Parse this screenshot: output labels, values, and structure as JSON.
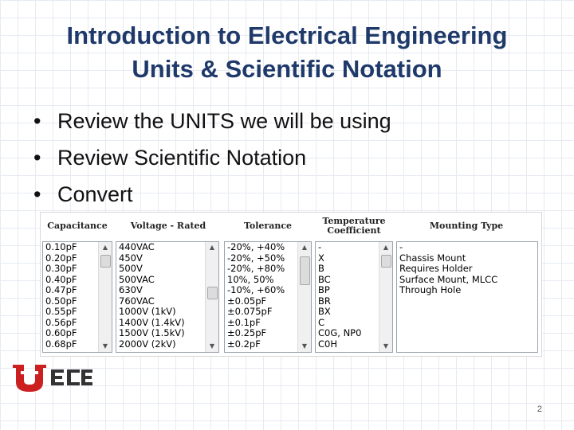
{
  "slide": {
    "title_line1": "Introduction to Electrical Engineering",
    "title_line2": "Units & Scientific Notation",
    "bullets": [
      "Review the UNITS we will be using",
      "Review Scientific Notation",
      "Convert"
    ],
    "page_number": "2"
  },
  "filters": {
    "capacitance": {
      "header": "Capacitance",
      "items": [
        "0.10pF",
        "0.20pF",
        "0.30pF",
        "0.40pF",
        "0.47pF",
        "0.50pF",
        "0.55pF",
        "0.56pF",
        "0.60pF",
        "0.68pF"
      ]
    },
    "voltage": {
      "header": "Voltage - Rated",
      "items": [
        "440VAC",
        "450V",
        "500V",
        "500VAC",
        "630V",
        "760VAC",
        "1000V (1kV)",
        "1400V (1.4kV)",
        "1500V (1.5kV)",
        "2000V (2kV)"
      ]
    },
    "tolerance": {
      "header": "Tolerance",
      "items": [
        "-20%, +40%",
        "-20%, +50%",
        "-20%, +80%",
        "10%, 50%",
        "-10%, +60%",
        "±0.05pF",
        "±0.075pF",
        "±0.1pF",
        "±0.25pF",
        "±0.2pF"
      ]
    },
    "temperature": {
      "header_line1": "Temperature",
      "header_line2": "Coefficient",
      "items": [
        "-",
        "X",
        "B",
        "BC",
        "BP",
        "BR",
        "BX",
        "C",
        "C0G, NP0",
        "C0H"
      ]
    },
    "mounting": {
      "header": "Mounting Type",
      "items": [
        "-",
        "Chassis Mount",
        "Requires Holder",
        "Surface Mount, MLCC",
        "Through Hole"
      ]
    }
  },
  "logo": {
    "text": "ECE",
    "primary_color": "#cc1f1f"
  }
}
